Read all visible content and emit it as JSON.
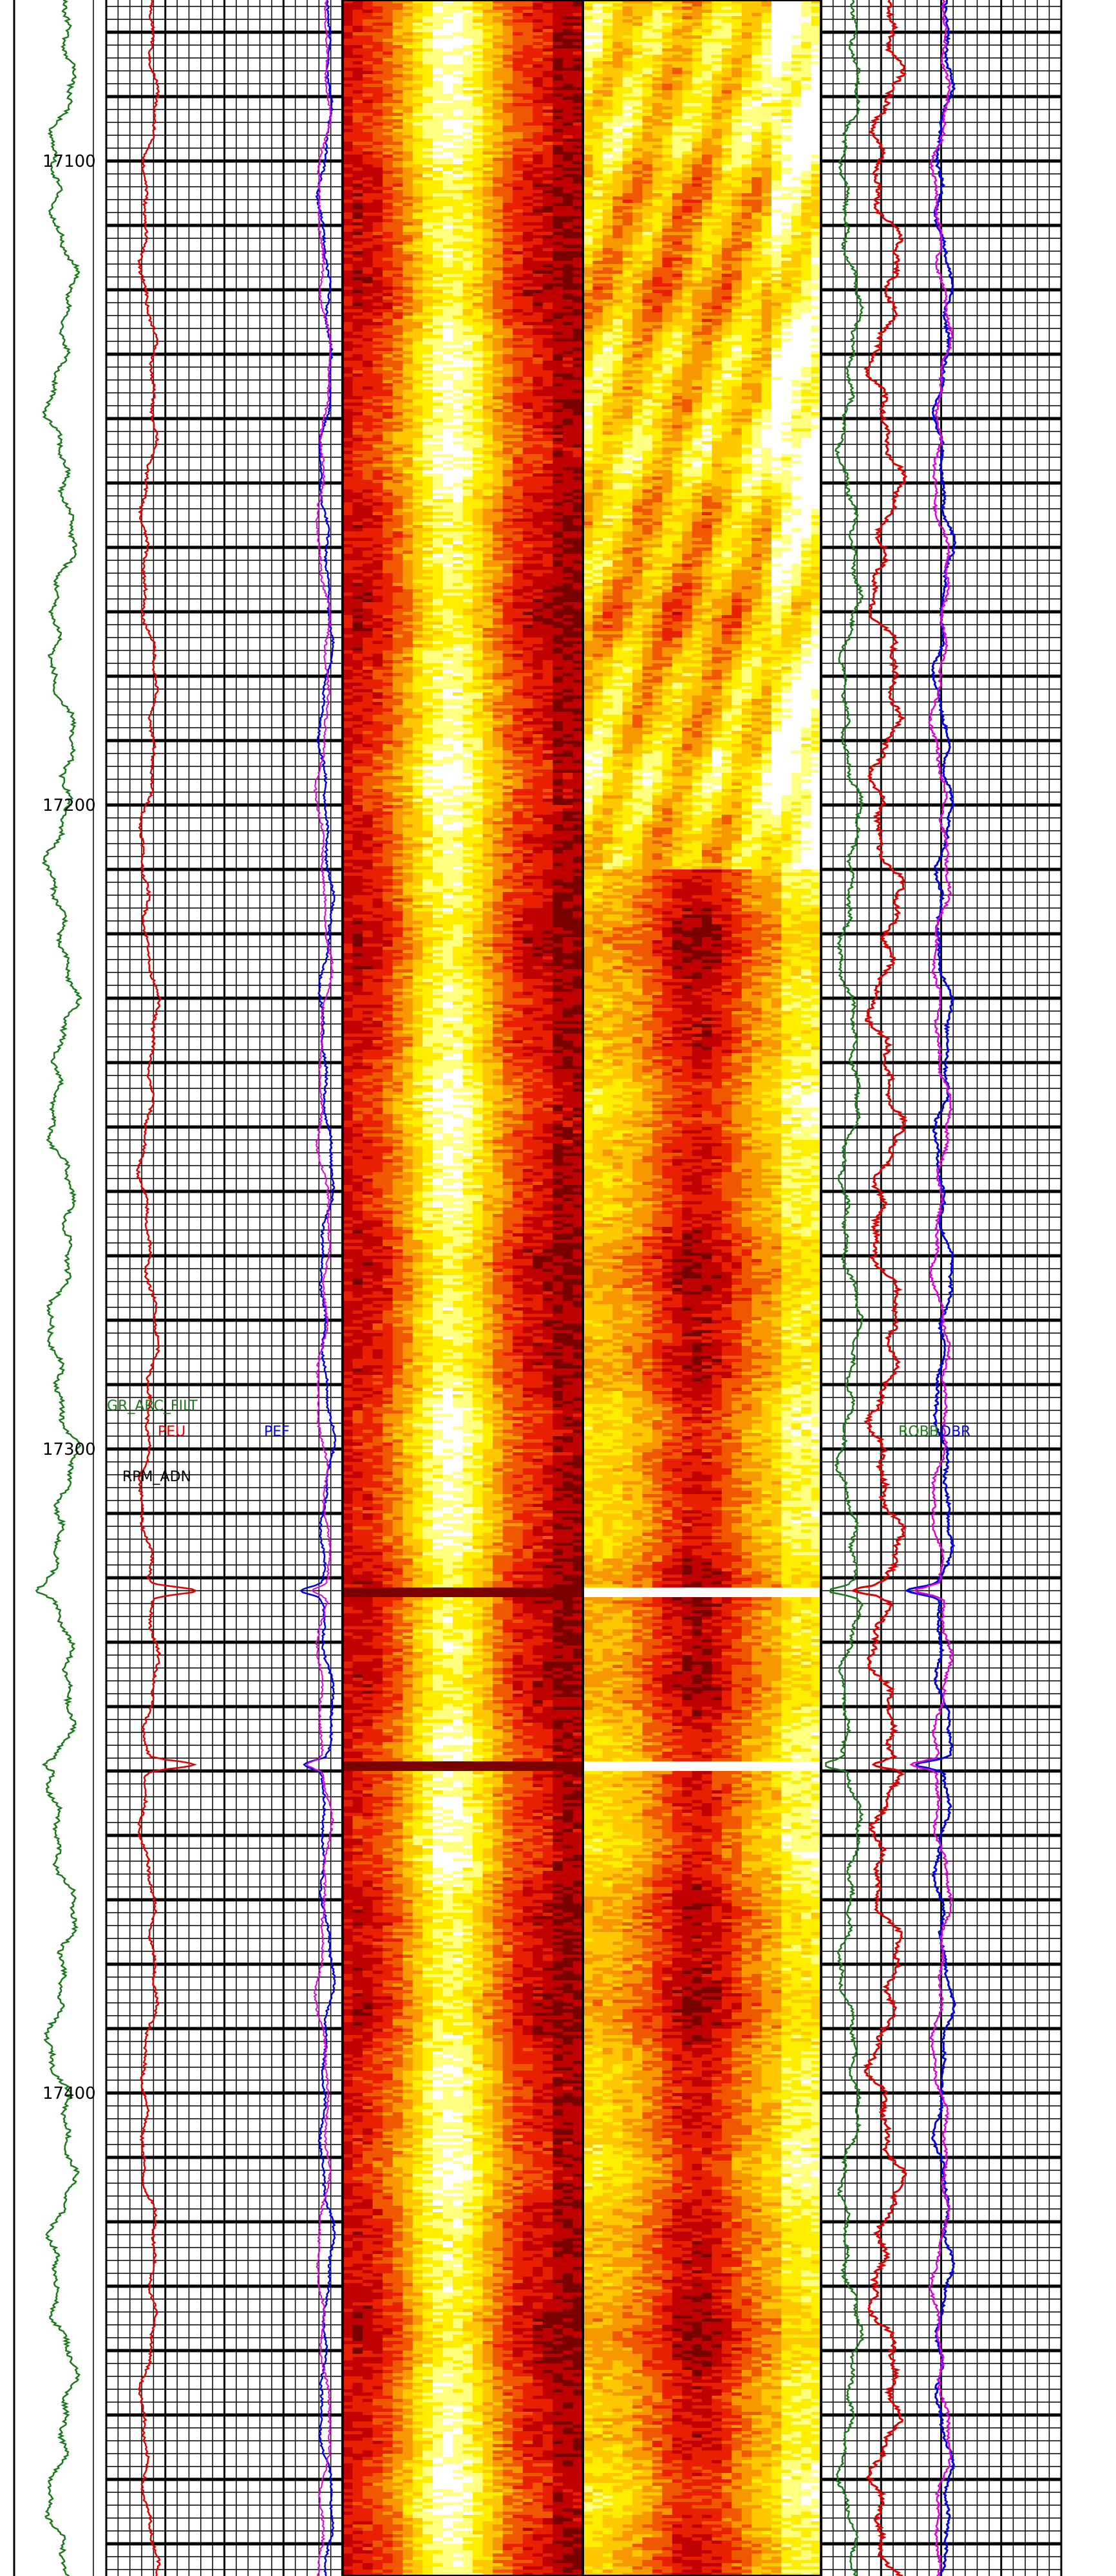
{
  "chart_data": {
    "type": "well-log",
    "depth_axis": {
      "range": [
        17075,
        17475
      ],
      "reversed": true,
      "major_labels": [
        "17100",
        "17200",
        "17300",
        "17400"
      ],
      "major_values": [
        17100,
        17200,
        17300,
        17400
      ],
      "major_step": 10,
      "minor_step": 2
    },
    "track1": {
      "curves": [
        {
          "name": "GR_ARC_FILT",
          "color": "#1a7a1a"
        },
        {
          "name": "RPM_ADN",
          "color": "#000000"
        }
      ],
      "gr_mean_samples": [
        {
          "depth": 17075,
          "value": 0.7
        },
        {
          "depth": 17150,
          "value": 0.72
        },
        {
          "depth": 17200,
          "value": 0.8
        },
        {
          "depth": 17250,
          "value": 0.95
        },
        {
          "depth": 17300,
          "value": 0.85
        },
        {
          "depth": 17340,
          "value": 0.7
        },
        {
          "depth": 17400,
          "value": 0.85
        },
        {
          "depth": 17475,
          "value": 0.9
        }
      ]
    },
    "track2": {
      "curves": [
        {
          "name": "PEU",
          "color": "#e00000"
        },
        {
          "name": "PEF",
          "color": "#0000e0"
        },
        {
          "name": "",
          "color": "#e000e0"
        }
      ]
    },
    "image_tracks": [
      {
        "name": "image-track-1",
        "palette": [
          "#7a0000",
          "#c00000",
          "#e82000",
          "#f05800",
          "#f89800",
          "#ffc800",
          "#ffee00",
          "#ffff80",
          "#ffffff"
        ]
      },
      {
        "name": "image-track-2",
        "palette": [
          "#7a0000",
          "#c00000",
          "#e82000",
          "#f05800",
          "#f89800",
          "#ffc800",
          "#ffee00",
          "#ffff80",
          "#ffffff"
        ]
      }
    ],
    "track4": {
      "curves": [
        {
          "name": "ROBB",
          "color": "#1a7a1a"
        },
        {
          "name": "",
          "color": "#e00000"
        },
        {
          "name": "DBR",
          "color": "#0000e0"
        },
        {
          "name": "",
          "color": "#e000e0"
        }
      ]
    },
    "events": [
      {
        "depth": 17322,
        "type": "spike"
      },
      {
        "depth": 17349,
        "type": "spike"
      }
    ]
  }
}
